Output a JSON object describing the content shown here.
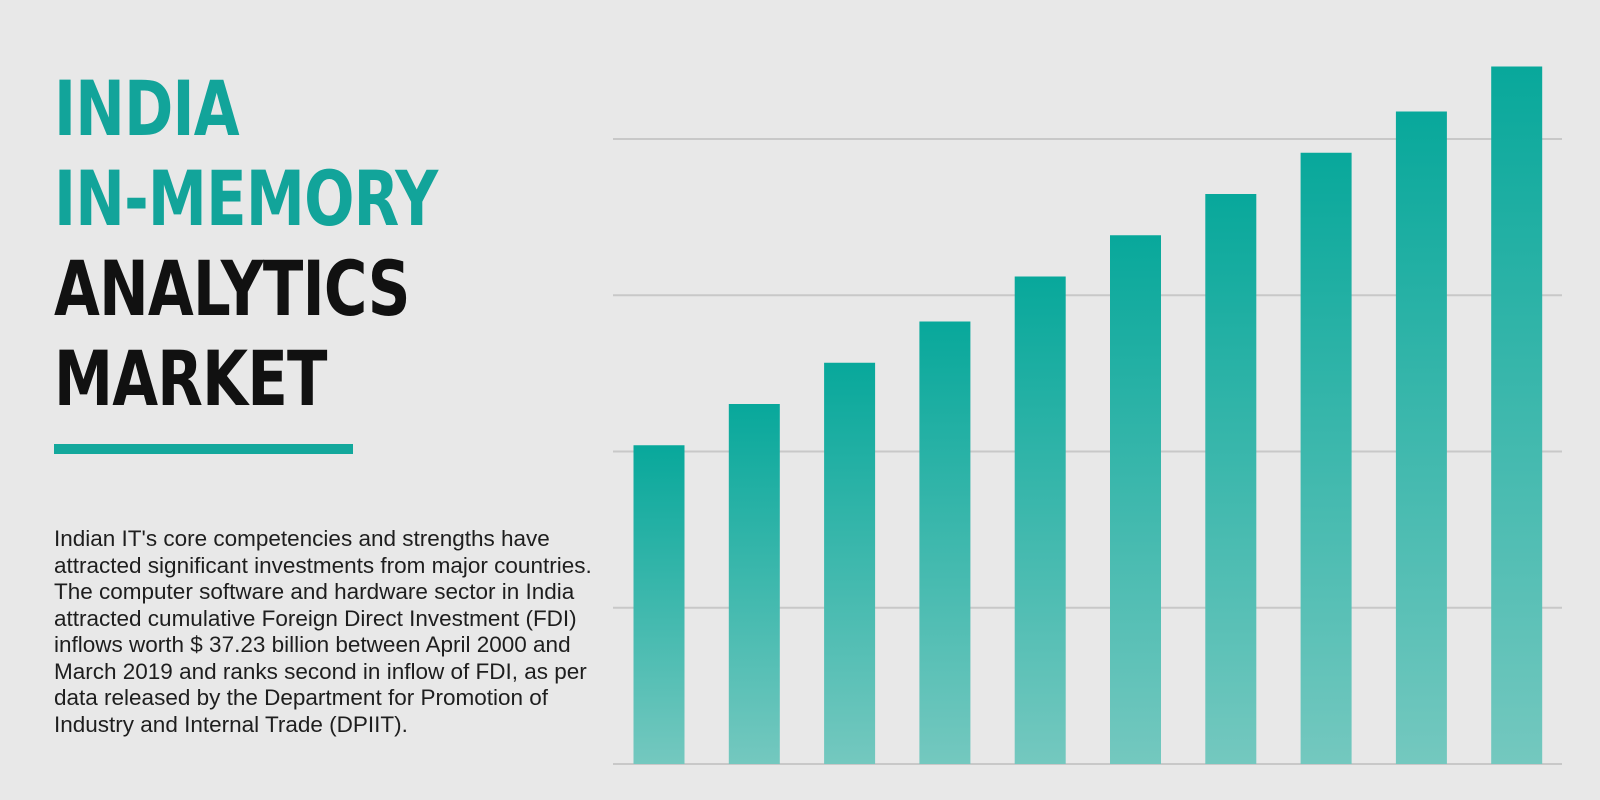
{
  "title": {
    "line1": "INDIA",
    "line2": "IN-MEMORY",
    "line3": "ANALYTICS",
    "line4": "MARKET"
  },
  "description": "Indian IT's core competencies and strengths have attracted significant investments from major countries. The computer software and hardware sector in India attracted cumulative Foreign Direct Investment (FDI) inflows worth $ 37.23 billion between April 2000 and March 2019 and ranks second in inflow of FDI, as per data released by the Department for Promotion of Industry and Internal Trade (DPIIT).",
  "colors": {
    "accent": "#12a49a",
    "bar_top": "#08a89b",
    "bar_bottom": "#74c8bf",
    "background": "#e8e8e8",
    "gridline": "#c8c8c8"
  },
  "chart_data": {
    "type": "bar",
    "categories": [
      "",
      "",
      "",
      "",
      "",
      "",
      "",
      "",
      "",
      ""
    ],
    "values": [
      51,
      57.6,
      64.2,
      70.8,
      78,
      84.6,
      91.2,
      97.8,
      104.4,
      111.6
    ],
    "ylim": [
      0,
      112
    ],
    "yticks": [
      25,
      50,
      75,
      100
    ],
    "grid": true,
    "xlabel": "",
    "ylabel": ""
  }
}
